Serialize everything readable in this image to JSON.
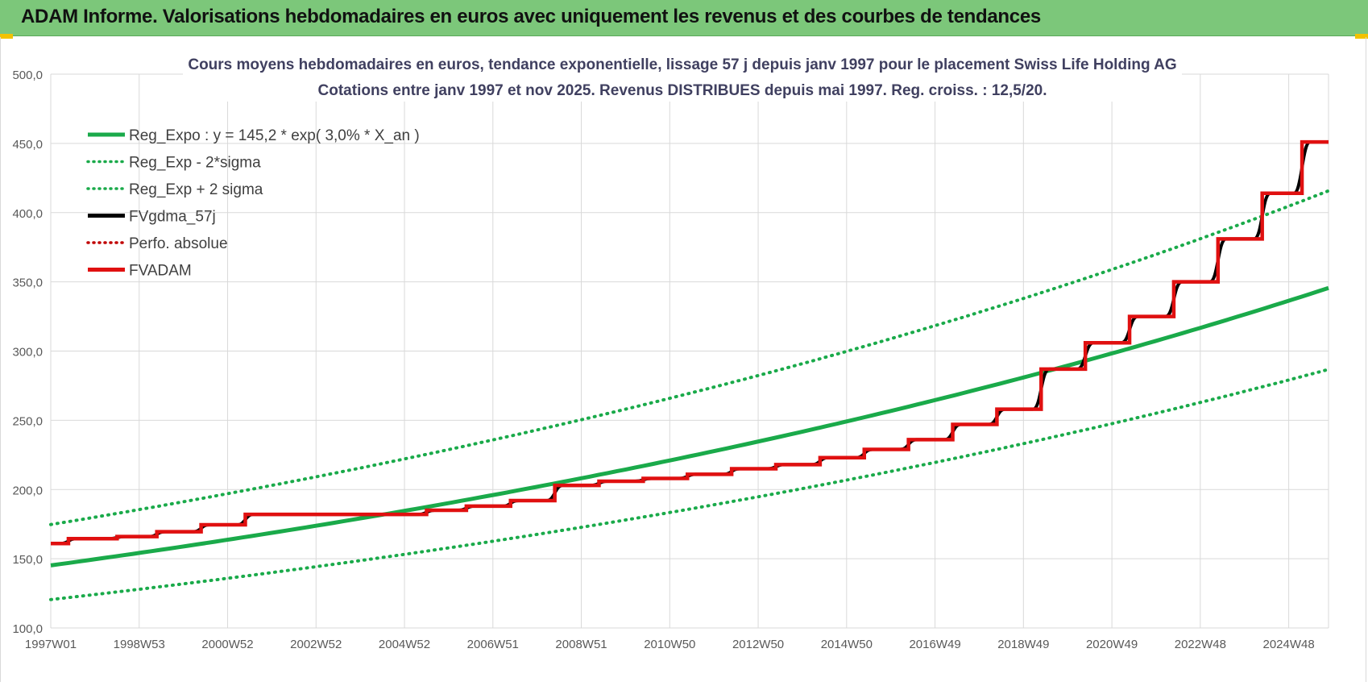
{
  "header": {
    "title": "ADAM Informe. Valorisations hebdomadaires en euros avec uniquement les revenus et des courbes de tendances"
  },
  "chart_data": {
    "type": "line",
    "title": "Cours moyens hebdomadaires en euros, tendance exponentielle, lissage 57 j depuis janv 1997 pour le placement Swiss Life Holding AG",
    "subtitle": "Cotations entre janv 1997 et nov 2025. Revenus DISTRIBUES depuis mai 1997. Reg. croiss. : 12,5/20.",
    "xlabel": "",
    "ylabel": "",
    "x_range": [
      "1997W01",
      "2025W47"
    ],
    "x_ticks": [
      "1997W01",
      "1998W53",
      "2000W52",
      "2002W52",
      "2004W52",
      "2006W51",
      "2008W51",
      "2010W50",
      "2012W50",
      "2014W50",
      "2016W49",
      "2018W49",
      "2020W49",
      "2022W48",
      "2024W48"
    ],
    "ylim": [
      100,
      500
    ],
    "y_ticks": [
      "100,0",
      "150,0",
      "200,0",
      "250,0",
      "300,0",
      "350,0",
      "400,0",
      "450,0",
      "500,0"
    ],
    "grid": true,
    "legend_position": "top-left",
    "series": [
      {
        "name": "Reg_Expo : y = 145,2 * exp( 3,0% *  X_an )",
        "style": "solid",
        "color": "#1aaa4a",
        "x": [
          0,
          4,
          8,
          12,
          16,
          20,
          24,
          28.9
        ],
        "y": [
          145.2,
          163.7,
          184.5,
          208.0,
          234.5,
          264.3,
          298.0,
          352.0
        ]
      },
      {
        "name": "Reg_Exp - 2*sigma",
        "style": "dotted",
        "color": "#1aaa4a",
        "x": [
          0,
          4,
          8,
          12,
          16,
          20,
          24,
          28.9
        ],
        "y": [
          120.5,
          135.9,
          153.2,
          172.6,
          194.6,
          219.4,
          247.3,
          292.2
        ]
      },
      {
        "name": "Reg_Exp + 2 sigma",
        "style": "dotted",
        "color": "#1aaa4a",
        "x": [
          0,
          4,
          8,
          12,
          16,
          20,
          24,
          28.9
        ],
        "y": [
          174.7,
          196.9,
          221.9,
          250.2,
          282.1,
          318.0,
          358.5,
          421.6
        ]
      },
      {
        "name": "FVgdma_57j",
        "style": "solid",
        "color": "#000000"
      },
      {
        "name": "Perfo. absolue",
        "style": "dotted",
        "color": "#c00000"
      },
      {
        "name": "FVADAM",
        "style": "solid",
        "color": "#e01010",
        "steps": [
          {
            "x": 0.0,
            "y": 161.0
          },
          {
            "x": 0.4,
            "y": 164.5
          },
          {
            "x": 1.5,
            "y": 166.0
          },
          {
            "x": 2.4,
            "y": 169.5
          },
          {
            "x": 3.4,
            "y": 174.5
          },
          {
            "x": 4.4,
            "y": 182.0
          },
          {
            "x": 8.5,
            "y": 185.0
          },
          {
            "x": 9.4,
            "y": 188.0
          },
          {
            "x": 10.4,
            "y": 192.0
          },
          {
            "x": 11.4,
            "y": 203.0
          },
          {
            "x": 12.4,
            "y": 206.0
          },
          {
            "x": 13.4,
            "y": 208.0
          },
          {
            "x": 14.4,
            "y": 211.0
          },
          {
            "x": 15.4,
            "y": 215.0
          },
          {
            "x": 16.4,
            "y": 218.0
          },
          {
            "x": 17.4,
            "y": 223.0
          },
          {
            "x": 18.4,
            "y": 229.0
          },
          {
            "x": 19.4,
            "y": 236.0
          },
          {
            "x": 20.4,
            "y": 247.0
          },
          {
            "x": 21.4,
            "y": 258.0
          },
          {
            "x": 22.4,
            "y": 287.0
          },
          {
            "x": 23.4,
            "y": 306.0
          },
          {
            "x": 24.4,
            "y": 325.0
          },
          {
            "x": 25.4,
            "y": 350.0
          },
          {
            "x": 26.4,
            "y": 381.0
          },
          {
            "x": 27.4,
            "y": 414.0
          },
          {
            "x": 28.3,
            "y": 451.0
          }
        ],
        "x_end": 28.9
      }
    ]
  }
}
